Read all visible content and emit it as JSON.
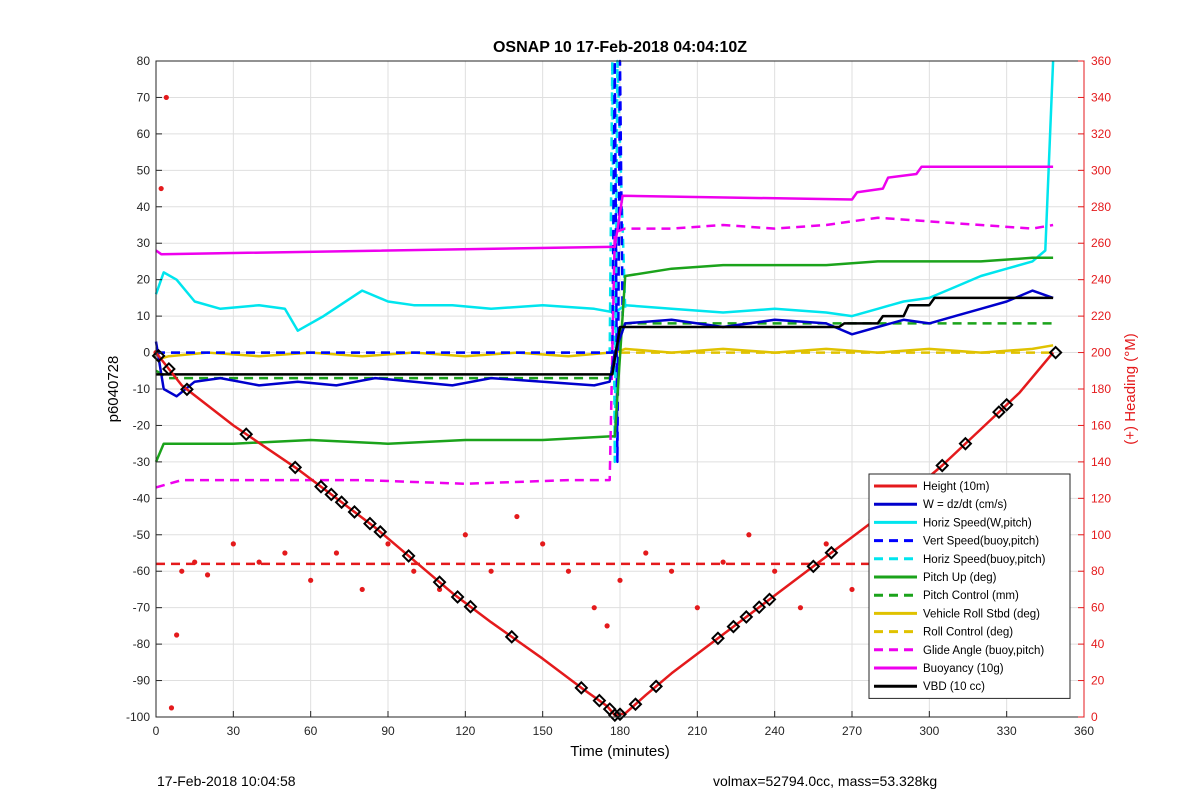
{
  "chart_data": {
    "type": "line",
    "title": "OSNAP 10 17-Feb-2018 04:04:10Z",
    "xlabel": "Time (minutes)",
    "ylabel": "p6040728",
    "y2label": "(+) Heading (°M)",
    "xlim": [
      0,
      360
    ],
    "ylim": [
      -100,
      80
    ],
    "y2lim": [
      0,
      360
    ],
    "xticks": [
      "0",
      "30",
      "60",
      "90",
      "120",
      "150",
      "180",
      "210",
      "240",
      "270",
      "300",
      "330",
      "360"
    ],
    "yticks": [
      "80",
      "70",
      "60",
      "50",
      "40",
      "30",
      "20",
      "10",
      "0",
      "-10",
      "-20",
      "-30",
      "-40",
      "-50",
      "-60",
      "-70",
      "-80",
      "-90",
      "-100"
    ],
    "y2ticks": [
      "360",
      "340",
      "320",
      "300",
      "280",
      "260",
      "240",
      "220",
      "200",
      "180",
      "160",
      "140",
      "120",
      "100",
      "80",
      "60",
      "40",
      "20",
      "0"
    ],
    "grid": true,
    "legend_position": "bottom-right",
    "colors": {
      "height": "#e41a1c",
      "w": "#0000cc",
      "horiz_speed": "#00e5ee",
      "vert_speed": "#0000ff",
      "horiz_speed_buoy": "#00e5ee",
      "pitch_up": "#1ba31b",
      "pitch_control": "#1ba31b",
      "vehicle_roll": "#e0c200",
      "roll_control": "#e0c200",
      "glide_angle": "#ee00ee",
      "buoyancy": "#ee00ee",
      "vbd": "#000000",
      "heading": "#e41a1c",
      "axis_left": "#000000",
      "axis_right": "#e41a1c"
    },
    "series": [
      {
        "key": "height",
        "name": "Height (10m)",
        "style": "solid",
        "axis": "left",
        "x": [
          0,
          10,
          30,
          55,
          70,
          85,
          100,
          115,
          130,
          150,
          165,
          175,
          178,
          182,
          190,
          200,
          215,
          230,
          245,
          260,
          275,
          290,
          305,
          320,
          335,
          348
        ],
        "y": [
          0,
          -9,
          -20,
          -32,
          -40,
          -48,
          -57,
          -66,
          -74,
          -84,
          -92,
          -97,
          -99.5,
          -99,
          -94,
          -88,
          -80,
          -72,
          -64,
          -56,
          -48,
          -40,
          -31,
          -21,
          -11,
          0
        ]
      },
      {
        "key": "w",
        "name": "W = dz/dt (cm/s)",
        "style": "solid",
        "axis": "left",
        "x": [
          0,
          3,
          8,
          15,
          25,
          40,
          55,
          70,
          85,
          100,
          115,
          130,
          150,
          170,
          176,
          178,
          182,
          200,
          220,
          240,
          260,
          270,
          280,
          290,
          300,
          310,
          320,
          330,
          340,
          348
        ],
        "y": [
          3,
          -10,
          -12,
          -8,
          -7,
          -9,
          -8,
          -9,
          -7,
          -8,
          -9,
          -7,
          -8,
          -9,
          -8,
          0,
          8,
          9,
          7,
          9,
          8,
          5,
          7,
          9,
          8,
          10,
          12,
          14,
          17,
          15
        ]
      },
      {
        "key": "horiz_speed",
        "name": "Horiz Speed(W,pitch)",
        "style": "solid",
        "axis": "left",
        "x": [
          0,
          3,
          8,
          15,
          25,
          40,
          50,
          55,
          65,
          80,
          90,
          100,
          115,
          130,
          150,
          170,
          178,
          182,
          200,
          220,
          240,
          260,
          270,
          280,
          290,
          300,
          310,
          320,
          330,
          340,
          345,
          348
        ],
        "y": [
          16,
          22,
          20,
          14,
          12,
          13,
          12,
          6,
          10,
          17,
          14,
          13,
          13,
          12,
          13,
          12,
          11,
          13,
          12,
          11,
          12,
          11,
          10,
          12,
          14,
          15,
          18,
          21,
          23,
          25,
          28,
          80
        ]
      },
      {
        "key": "vert_speed",
        "name": "Vert Speed(buoy,pitch)",
        "style": "dashed",
        "axis": "left",
        "x": [
          0,
          177,
          178,
          179,
          180,
          181
        ],
        "y": [
          0,
          0,
          80,
          -30,
          80,
          10
        ]
      },
      {
        "key": "horiz_speed_buoy",
        "name": "Horiz Speed(buoy,pitch)",
        "style": "dashed",
        "axis": "left",
        "x": [
          0,
          176,
          177,
          178,
          179,
          182
        ],
        "y": [
          0,
          0,
          80,
          -30,
          80,
          12
        ]
      },
      {
        "key": "pitch_up",
        "name": "Pitch Up (deg)",
        "style": "solid",
        "axis": "left",
        "x": [
          0,
          3,
          10,
          30,
          60,
          90,
          120,
          150,
          176,
          178,
          182,
          200,
          220,
          240,
          260,
          280,
          300,
          320,
          340,
          348
        ],
        "y": [
          -30,
          -25,
          -25,
          -25,
          -24,
          -25,
          -24,
          -24,
          -23,
          -23,
          21,
          23,
          24,
          24,
          24,
          25,
          25,
          25,
          26,
          26
        ]
      },
      {
        "key": "pitch_control",
        "name": "Pitch Control (mm)",
        "style": "dashed",
        "axis": "left",
        "x": [
          0,
          5,
          176,
          178,
          182,
          330,
          348
        ],
        "y": [
          -5,
          -7,
          -7,
          0,
          8,
          8,
          8
        ]
      },
      {
        "key": "vehicle_roll",
        "name": "Vehicle Roll Stbd (deg)",
        "style": "solid",
        "axis": "left",
        "x": [
          0,
          5,
          20,
          40,
          60,
          80,
          100,
          120,
          140,
          160,
          176,
          178,
          182,
          200,
          220,
          240,
          260,
          280,
          300,
          320,
          340,
          348
        ],
        "y": [
          -2,
          -1,
          0,
          -1,
          0,
          -1,
          0,
          -1,
          0,
          -1,
          0,
          0,
          1,
          0,
          1,
          0,
          1,
          0,
          1,
          0,
          1,
          2
        ]
      },
      {
        "key": "roll_control",
        "name": "Roll Control (deg)",
        "style": "dashed",
        "axis": "left",
        "x": [
          0,
          176,
          178,
          348
        ],
        "y": [
          0,
          0,
          0,
          0
        ]
      },
      {
        "key": "glide_angle",
        "name": "Glide Angle (buoy,pitch)",
        "style": "dashed",
        "axis": "left",
        "x": [
          0,
          10,
          40,
          80,
          120,
          160,
          176,
          178,
          182,
          200,
          220,
          240,
          260,
          280,
          300,
          320,
          340,
          348
        ],
        "y": [
          -37,
          -35,
          -35,
          -35,
          -36,
          -35,
          -35,
          33,
          34,
          34,
          35,
          34,
          35,
          37,
          36,
          35,
          34,
          35
        ]
      },
      {
        "key": "buoyancy",
        "name": "Buoyancy (10g)",
        "style": "solid",
        "axis": "left",
        "x": [
          0,
          2,
          176,
          178,
          181,
          270,
          272,
          282,
          284,
          295,
          297,
          348
        ],
        "y": [
          28,
          27,
          29,
          29,
          43,
          42,
          44,
          45,
          48,
          49,
          51,
          51
        ]
      },
      {
        "key": "vbd",
        "name": "VBD (10 cc)",
        "style": "solid",
        "axis": "left",
        "x": [
          0,
          2,
          176,
          177,
          180,
          181,
          265,
          267,
          280,
          282,
          290,
          292,
          300,
          302,
          348
        ],
        "y": [
          -6,
          -6,
          -6,
          -6,
          7,
          7,
          7,
          8,
          8,
          10,
          10,
          13,
          13,
          15,
          15
        ]
      },
      {
        "key": "heading",
        "name": "Heading",
        "style": "dotted",
        "axis": "right",
        "x": [
          0,
          2,
          4,
          6,
          8,
          10,
          15,
          20,
          30,
          40,
          50,
          60,
          70,
          80,
          90,
          100,
          110,
          120,
          130,
          140,
          150,
          160,
          170,
          175,
          180,
          190,
          200,
          210,
          220,
          230,
          240,
          250,
          260,
          270,
          280,
          290,
          300,
          310,
          320,
          330,
          340,
          348
        ],
        "y": [
          200,
          290,
          340,
          5,
          45,
          80,
          85,
          78,
          95,
          85,
          90,
          75,
          90,
          70,
          95,
          80,
          70,
          100,
          80,
          110,
          95,
          80,
          60,
          50,
          75,
          90,
          80,
          60,
          85,
          100,
          80,
          60,
          95,
          70,
          90,
          105,
          75,
          90,
          65,
          85,
          70,
          80
        ]
      },
      {
        "key": "heading_ref",
        "name": "",
        "style": "dashed",
        "axis": "right",
        "x": [
          0,
          348
        ],
        "y": [
          84,
          84
        ]
      }
    ],
    "markers": {
      "series_key": "height",
      "x": [
        1,
        5,
        12,
        35,
        54,
        64,
        68,
        72,
        77,
        83,
        87,
        98,
        110,
        117,
        122,
        138,
        165,
        172,
        176,
        178,
        180,
        186,
        194,
        218,
        224,
        229,
        234,
        238,
        255,
        262,
        279,
        288,
        297,
        305,
        314,
        327,
        330,
        349
      ]
    }
  },
  "legend_title": "",
  "footer": {
    "left": "17-Feb-2018 10:04:58",
    "right": "volmax=52794.0cc, mass=53.328kg"
  }
}
